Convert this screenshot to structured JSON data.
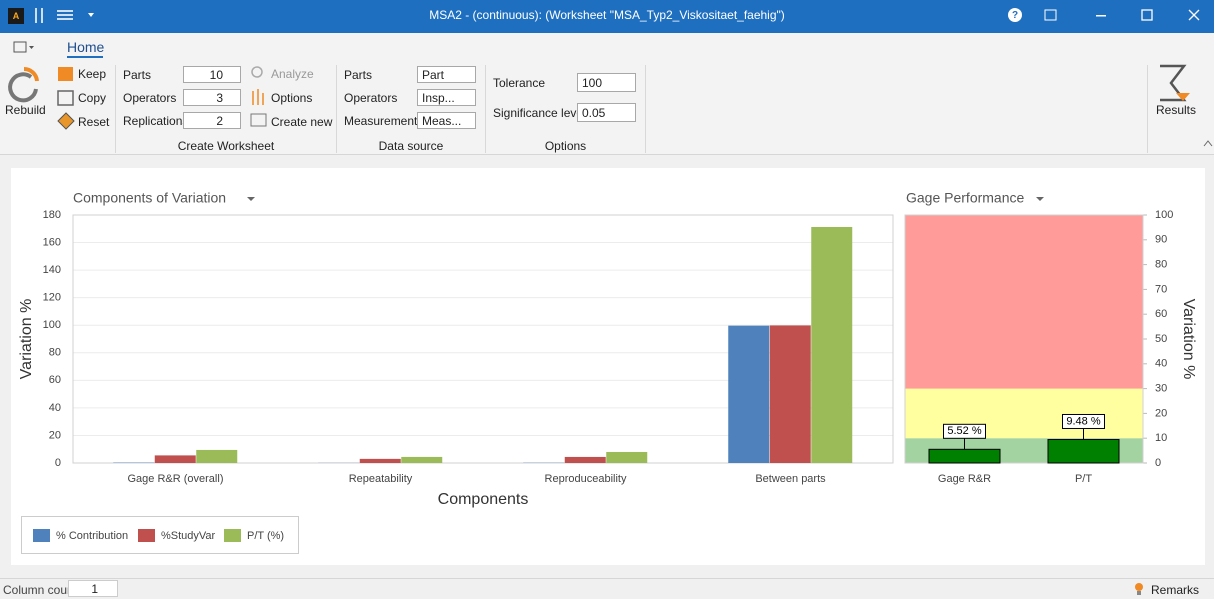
{
  "window": {
    "title": "MSA2 - (continuous):  (Worksheet \"MSA_Typ2_Viskositaet_faehig\")"
  },
  "ribbon": {
    "tab": "Home",
    "rebuild": "Rebuild",
    "keep": "Keep",
    "copy": "Copy",
    "reset": "Reset",
    "create_worksheet": {
      "label": "Create Worksheet",
      "parts_label": "Parts",
      "parts": 10,
      "operators_label": "Operators",
      "operators": 3,
      "replications_label": "Replications",
      "replications": 2,
      "analyze": "Analyze",
      "options": "Options",
      "create_new": "Create new"
    },
    "data_source": {
      "label": "Data source",
      "parts_label": "Parts",
      "parts": "Part",
      "operators_label": "Operators",
      "operators": "Insp...",
      "measurements_label": "Measurements",
      "measurements": "Meas..."
    },
    "options": {
      "label": "Options",
      "tolerance_label": "Tolerance",
      "tolerance": 100,
      "significance_label": "Significance level",
      "significance": 0.05
    },
    "results": "Results"
  },
  "chart_data": [
    {
      "type": "bar",
      "title": "Components of Variation",
      "x_label": "Components",
      "y_label": "Variation %",
      "categories": [
        "Gage R&R (overall)",
        "Repeatability",
        "Reproduceability",
        "Between parts"
      ],
      "series": [
        {
          "name": "% Contribution",
          "color": "#4f81bd",
          "values": [
            0.3,
            0.1,
            0.2,
            99.7
          ]
        },
        {
          "name": "%StudyVar",
          "color": "#c0504d",
          "values": [
            5.52,
            3.0,
            4.4,
            99.85
          ]
        },
        {
          "name": "P/T (%)",
          "color": "#9bbb59",
          "values": [
            9.48,
            4.4,
            8.0,
            171.3
          ]
        }
      ],
      "ylim": [
        0,
        180
      ],
      "yticks": [
        0,
        20,
        40,
        60,
        80,
        100,
        120,
        140,
        160,
        180
      ],
      "grid": true
    },
    {
      "type": "bar",
      "title": "Gage Performance",
      "y2_label": "Variation %",
      "categories": [
        "Gage R&R",
        "P/T"
      ],
      "series": [
        {
          "color": "#008000",
          "axis": "y2",
          "values": [
            5.52,
            9.48
          ],
          "value_labels": [
            "5.52 %",
            "9.48 %"
          ]
        }
      ],
      "bands": [
        {
          "from": 0,
          "to": 10,
          "color": "#a3d3a0"
        },
        {
          "from": 10,
          "to": 30,
          "color": "#ffff9f"
        },
        {
          "from": 30,
          "to": 100,
          "color": "#ff9b99"
        }
      ],
      "y2lim": [
        0,
        100
      ],
      "y2ticks": [
        0,
        10,
        20,
        30,
        40,
        50,
        60,
        70,
        80,
        90,
        100
      ]
    }
  ],
  "status_bar": {
    "column_count_label": "Column count",
    "column_count": 1,
    "remarks": "Remarks"
  }
}
